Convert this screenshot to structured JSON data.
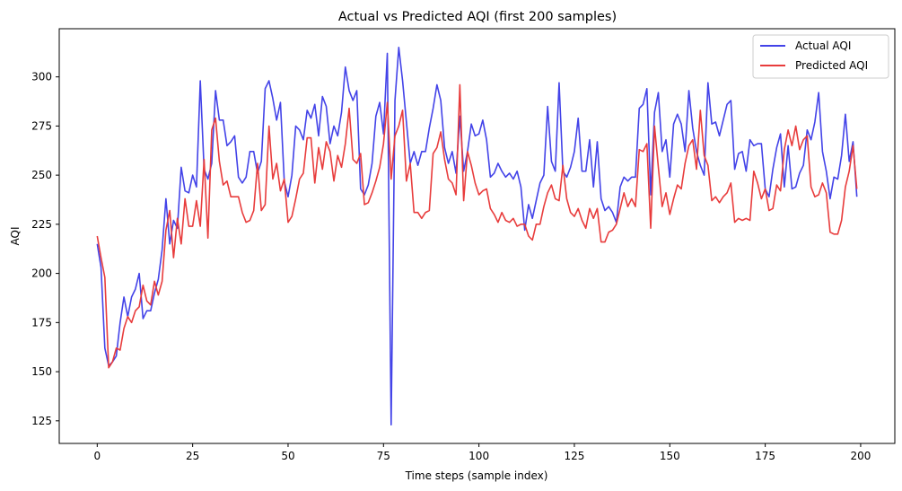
{
  "chart_data": {
    "type": "line",
    "title": "Actual vs Predicted AQI (first 200 samples)",
    "xlabel": "Time steps (sample index)",
    "ylabel": "AQI",
    "xlim": [
      -9.95,
      208.95
    ],
    "ylim": [
      113.5,
      324.5
    ],
    "xticks": [
      0,
      25,
      50,
      75,
      100,
      125,
      150,
      175,
      200
    ],
    "yticks": [
      125,
      150,
      175,
      200,
      225,
      250,
      275,
      300
    ],
    "grid": false,
    "legend_position": "top-right",
    "series": [
      {
        "name": "Actual AQI",
        "color": "#4343e8",
        "x": [
          0,
          1,
          2,
          3,
          4,
          5,
          6,
          7,
          8,
          9,
          10,
          11,
          12,
          13,
          14,
          15,
          16,
          17,
          18,
          19,
          20,
          21,
          22,
          23,
          24,
          25,
          26,
          27,
          28,
          29,
          30,
          31,
          32,
          33,
          34,
          35,
          36,
          37,
          38,
          39,
          40,
          41,
          42,
          43,
          44,
          45,
          46,
          47,
          48,
          49,
          50,
          51,
          52,
          53,
          54,
          55,
          56,
          57,
          58,
          59,
          60,
          61,
          62,
          63,
          64,
          65,
          66,
          67,
          68,
          69,
          70,
          71,
          72,
          73,
          74,
          75,
          76,
          77,
          78,
          79,
          80,
          81,
          82,
          83,
          84,
          85,
          86,
          87,
          88,
          89,
          90,
          91,
          92,
          93,
          94,
          95,
          96,
          97,
          98,
          99,
          100,
          101,
          102,
          103,
          104,
          105,
          106,
          107,
          108,
          109,
          110,
          111,
          112,
          113,
          114,
          115,
          116,
          117,
          118,
          119,
          120,
          121,
          122,
          123,
          124,
          125,
          126,
          127,
          128,
          129,
          130,
          131,
          132,
          133,
          134,
          135,
          136,
          137,
          138,
          139,
          140,
          141,
          142,
          143,
          144,
          145,
          146,
          147,
          148,
          149,
          150,
          151,
          152,
          153,
          154,
          155,
          156,
          157,
          158,
          159,
          160,
          161,
          162,
          163,
          164,
          165,
          166,
          167,
          168,
          169,
          170,
          171,
          172,
          173,
          174,
          175,
          176,
          177,
          178,
          179,
          180,
          181,
          182,
          183,
          184,
          185,
          186,
          187,
          188,
          189,
          190,
          191,
          192,
          193,
          194,
          195,
          196,
          197,
          198,
          199
        ],
        "values": [
          215,
          203,
          162,
          153,
          155,
          158,
          175,
          188,
          178,
          188,
          192,
          200,
          177,
          181,
          181,
          190,
          197,
          212,
          238,
          215,
          227,
          223,
          254,
          242,
          241,
          250,
          244,
          298,
          253,
          248,
          256,
          293,
          278,
          278,
          265,
          267,
          270,
          249,
          246,
          249,
          262,
          262,
          251,
          257,
          294,
          298,
          289,
          278,
          287,
          247,
          239,
          250,
          275,
          273,
          268,
          283,
          279,
          286,
          270,
          290,
          285,
          266,
          275,
          270,
          282,
          305,
          293,
          288,
          293,
          243,
          240,
          245,
          256,
          280,
          287,
          271,
          312,
          123,
          288,
          315,
          298,
          277,
          256,
          262,
          255,
          262,
          262,
          274,
          284,
          296,
          288,
          264,
          256,
          262,
          251,
          280,
          252,
          262,
          276,
          270,
          271,
          278,
          268,
          249,
          251,
          256,
          252,
          249,
          251,
          248,
          252,
          244,
          222,
          235,
          228,
          237,
          246,
          250,
          285,
          257,
          252,
          297,
          252,
          249,
          254,
          262,
          279,
          252,
          252,
          268,
          244,
          267,
          238,
          232,
          234,
          231,
          226,
          244,
          249,
          247,
          249,
          249,
          284,
          286,
          294,
          240,
          282,
          292,
          262,
          268,
          249,
          276,
          281,
          276,
          262,
          293,
          274,
          262,
          255,
          250,
          297,
          276,
          277,
          270,
          278,
          286,
          288,
          253,
          261,
          262,
          252,
          268,
          265,
          266,
          266,
          243,
          239,
          253,
          264,
          271,
          244,
          265,
          243,
          244,
          251,
          255,
          273,
          268,
          277,
          292,
          262,
          252,
          238,
          249,
          248,
          260,
          281,
          257,
          267,
          239
        ]
      },
      {
        "name": "Predicted AQI",
        "color": "#e83c3c",
        "x": [
          0,
          1,
          2,
          3,
          4,
          5,
          6,
          7,
          8,
          9,
          10,
          11,
          12,
          13,
          14,
          15,
          16,
          17,
          18,
          19,
          20,
          21,
          22,
          23,
          24,
          25,
          26,
          27,
          28,
          29,
          30,
          31,
          32,
          33,
          34,
          35,
          36,
          37,
          38,
          39,
          40,
          41,
          42,
          43,
          44,
          45,
          46,
          47,
          48,
          49,
          50,
          51,
          52,
          53,
          54,
          55,
          56,
          57,
          58,
          59,
          60,
          61,
          62,
          63,
          64,
          65,
          66,
          67,
          68,
          69,
          70,
          71,
          72,
          73,
          74,
          75,
          76,
          77,
          78,
          79,
          80,
          81,
          82,
          83,
          84,
          85,
          86,
          87,
          88,
          89,
          90,
          91,
          92,
          93,
          94,
          95,
          96,
          97,
          98,
          99,
          100,
          101,
          102,
          103,
          104,
          105,
          106,
          107,
          108,
          109,
          110,
          111,
          112,
          113,
          114,
          115,
          116,
          117,
          118,
          119,
          120,
          121,
          122,
          123,
          124,
          125,
          126,
          127,
          128,
          129,
          130,
          131,
          132,
          133,
          134,
          135,
          136,
          137,
          138,
          139,
          140,
          141,
          142,
          143,
          144,
          145,
          146,
          147,
          148,
          149,
          150,
          151,
          152,
          153,
          154,
          155,
          156,
          157,
          158,
          159,
          160,
          161,
          162,
          163,
          164,
          165,
          166,
          167,
          168,
          169,
          170,
          171,
          172,
          173,
          174,
          175,
          176,
          177,
          178,
          179,
          180,
          181,
          182,
          183,
          184,
          185,
          186,
          187,
          188,
          189,
          190,
          191,
          192,
          193,
          194,
          195,
          196,
          197,
          198,
          199
        ],
        "values": [
          219,
          208,
          198,
          152,
          155,
          162,
          161,
          172,
          178,
          175,
          181,
          183,
          194,
          186,
          184,
          196,
          189,
          196,
          222,
          232,
          208,
          228,
          215,
          238,
          224,
          224,
          237,
          224,
          258,
          218,
          273,
          279,
          257,
          245,
          247,
          239,
          239,
          239,
          231,
          226,
          227,
          232,
          256,
          232,
          235,
          275,
          248,
          256,
          242,
          248,
          226,
          229,
          238,
          248,
          251,
          269,
          269,
          246,
          264,
          253,
          267,
          262,
          247,
          260,
          254,
          266,
          284,
          258,
          256,
          261,
          235,
          236,
          241,
          247,
          254,
          266,
          287,
          248,
          270,
          275,
          283,
          247,
          256,
          231,
          231,
          228,
          231,
          232,
          261,
          264,
          272,
          258,
          248,
          246,
          240,
          296,
          237,
          262,
          255,
          246,
          240,
          242,
          243,
          233,
          230,
          226,
          231,
          227,
          226,
          228,
          224,
          225,
          225,
          219,
          217,
          225,
          225,
          234,
          241,
          245,
          238,
          237,
          255,
          238,
          231,
          229,
          233,
          227,
          223,
          233,
          228,
          233,
          216,
          216,
          221,
          222,
          225,
          233,
          241,
          234,
          238,
          234,
          263,
          262,
          266,
          223,
          275,
          254,
          234,
          241,
          230,
          238,
          245,
          243,
          256,
          265,
          268,
          253,
          283,
          260,
          255,
          237,
          239,
          236,
          239,
          241,
          246,
          226,
          228,
          227,
          228,
          227,
          252,
          246,
          238,
          243,
          232,
          233,
          245,
          242,
          263,
          273,
          265,
          275,
          263,
          268,
          270,
          244,
          239,
          240,
          246,
          241,
          221,
          220,
          220,
          227,
          244,
          252,
          265,
          243
        ]
      }
    ]
  }
}
